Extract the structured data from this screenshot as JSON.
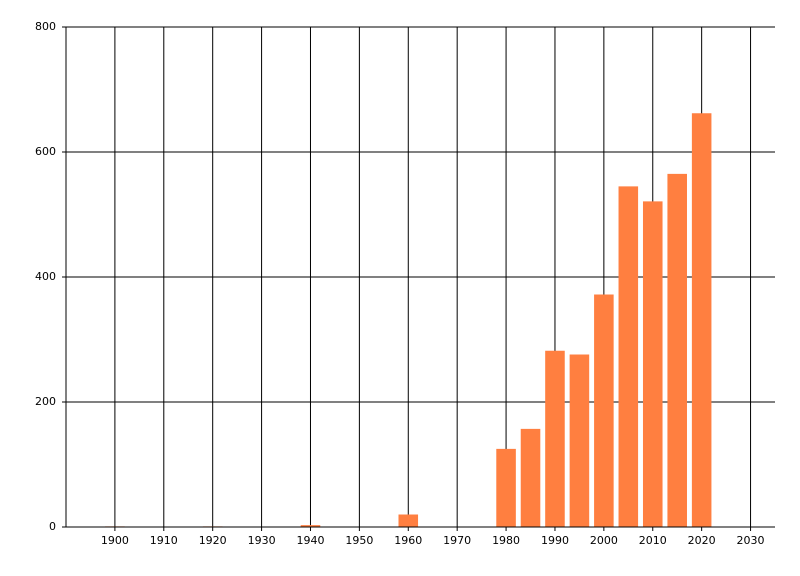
{
  "chart_data": {
    "type": "bar",
    "x": [
      1900,
      1920,
      1940,
      1960,
      1980,
      1985,
      1990,
      1995,
      2000,
      2005,
      2010,
      2015,
      2020
    ],
    "values": [
      1,
      1,
      3,
      20,
      125,
      157,
      282,
      276,
      372,
      545,
      521,
      565,
      662
    ],
    "color": "#ff7f40",
    "xlim": [
      1890,
      2035
    ],
    "xticks": [
      1900,
      1910,
      1920,
      1930,
      1940,
      1950,
      1960,
      1970,
      1980,
      1990,
      2000,
      2010,
      2020,
      2030
    ],
    "ylim": [
      0,
      800
    ],
    "yticks": [
      0,
      200,
      400,
      600,
      800
    ],
    "grid": true
  }
}
